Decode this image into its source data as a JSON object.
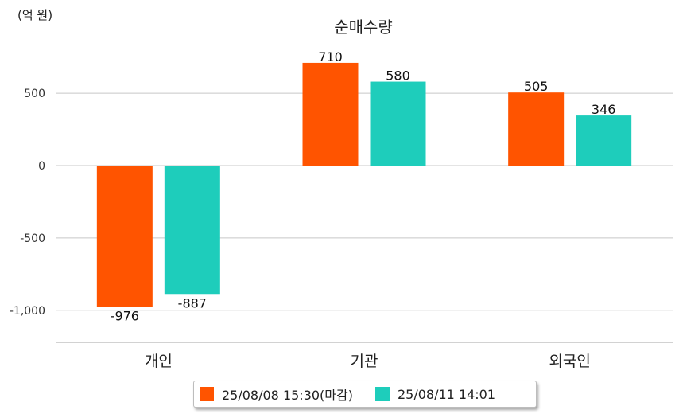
{
  "chart_data": {
    "type": "bar",
    "title": "순매수량",
    "unit_label": "(억 원)",
    "categories": [
      "개인",
      "기관",
      "외국인"
    ],
    "series": [
      {
        "name": "25/08/08 15:30(마감)",
        "color": "#FF5400",
        "values": [
          -976,
          710,
          505
        ]
      },
      {
        "name": "25/08/11 14:01",
        "color": "#1ECDBB",
        "values": [
          -887,
          580,
          346
        ]
      }
    ],
    "yticks": [
      500,
      0,
      -500,
      -1000
    ],
    "ytick_labels": [
      "500",
      "0",
      "-500",
      "-1,000"
    ],
    "ylim": [
      -1220,
      900
    ],
    "grid": true,
    "legend_position": "bottom"
  }
}
